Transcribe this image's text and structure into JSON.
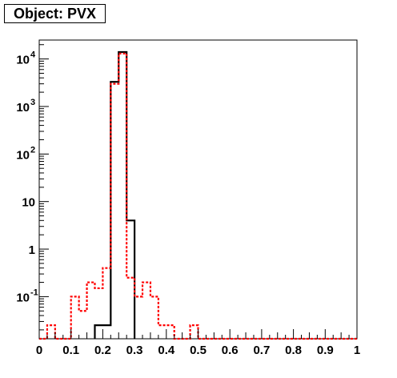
{
  "chart_data": {
    "type": "histogram",
    "title": "Object: PVX",
    "xlabel": "",
    "ylabel": "",
    "xlim": [
      0,
      1
    ],
    "ylim": [
      0.013,
      25000
    ],
    "yscale": "log",
    "grid": false,
    "legend": "none",
    "bin_width": 0.025,
    "x_ticks": [
      "0",
      "0.1",
      "0.2",
      "0.3",
      "0.4",
      "0.5",
      "0.6",
      "0.7",
      "0.8",
      "0.9",
      "1"
    ],
    "x_tick_values": [
      0,
      0.1,
      0.2,
      0.3,
      0.4,
      0.5,
      0.6,
      0.7,
      0.8,
      0.9,
      1
    ],
    "y_ticks": [
      {
        "value": 0.1,
        "base": "10",
        "exp": "-1"
      },
      {
        "value": 1,
        "base": "1",
        "exp": ""
      },
      {
        "value": 10,
        "base": "10",
        "exp": ""
      },
      {
        "value": 100,
        "base": "10",
        "exp": "2"
      },
      {
        "value": 1000,
        "base": "10",
        "exp": "3"
      },
      {
        "value": 10000,
        "base": "10",
        "exp": "4"
      }
    ],
    "series": [
      {
        "color": "#000000",
        "style": "solid",
        "bins": [
          {
            "x0": 0.175,
            "x1": 0.2,
            "y": 0.025
          },
          {
            "x0": 0.2,
            "x1": 0.225,
            "y": 0.025
          },
          {
            "x0": 0.225,
            "x1": 0.25,
            "y": 3300
          },
          {
            "x0": 0.25,
            "x1": 0.275,
            "y": 14000
          },
          {
            "x0": 0.275,
            "x1": 0.3,
            "y": 4
          }
        ]
      },
      {
        "color": "#ff0000",
        "style": "dashed",
        "bins": [
          {
            "x0": 0.0,
            "x1": 0.025,
            "y": 0.013
          },
          {
            "x0": 0.025,
            "x1": 0.05,
            "y": 0.025
          },
          {
            "x0": 0.05,
            "x1": 0.075,
            "y": 0.013
          },
          {
            "x0": 0.075,
            "x1": 0.1,
            "y": 0.013
          },
          {
            "x0": 0.1,
            "x1": 0.125,
            "y": 0.1
          },
          {
            "x0": 0.125,
            "x1": 0.15,
            "y": 0.05
          },
          {
            "x0": 0.15,
            "x1": 0.175,
            "y": 0.2
          },
          {
            "x0": 0.175,
            "x1": 0.2,
            "y": 0.15
          },
          {
            "x0": 0.2,
            "x1": 0.225,
            "y": 0.4
          },
          {
            "x0": 0.225,
            "x1": 0.25,
            "y": 3000
          },
          {
            "x0": 0.25,
            "x1": 0.275,
            "y": 13000
          },
          {
            "x0": 0.275,
            "x1": 0.3,
            "y": 0.25
          },
          {
            "x0": 0.3,
            "x1": 0.325,
            "y": 0.1
          },
          {
            "x0": 0.325,
            "x1": 0.35,
            "y": 0.2
          },
          {
            "x0": 0.35,
            "x1": 0.375,
            "y": 0.1
          },
          {
            "x0": 0.375,
            "x1": 0.4,
            "y": 0.025
          },
          {
            "x0": 0.4,
            "x1": 0.425,
            "y": 0.025
          },
          {
            "x0": 0.425,
            "x1": 0.45,
            "y": 0.013
          },
          {
            "x0": 0.45,
            "x1": 0.475,
            "y": 0.013
          },
          {
            "x0": 0.475,
            "x1": 0.5,
            "y": 0.025
          },
          {
            "x0": 0.5,
            "x1": 1.0,
            "y": 0.013
          }
        ]
      }
    ]
  }
}
